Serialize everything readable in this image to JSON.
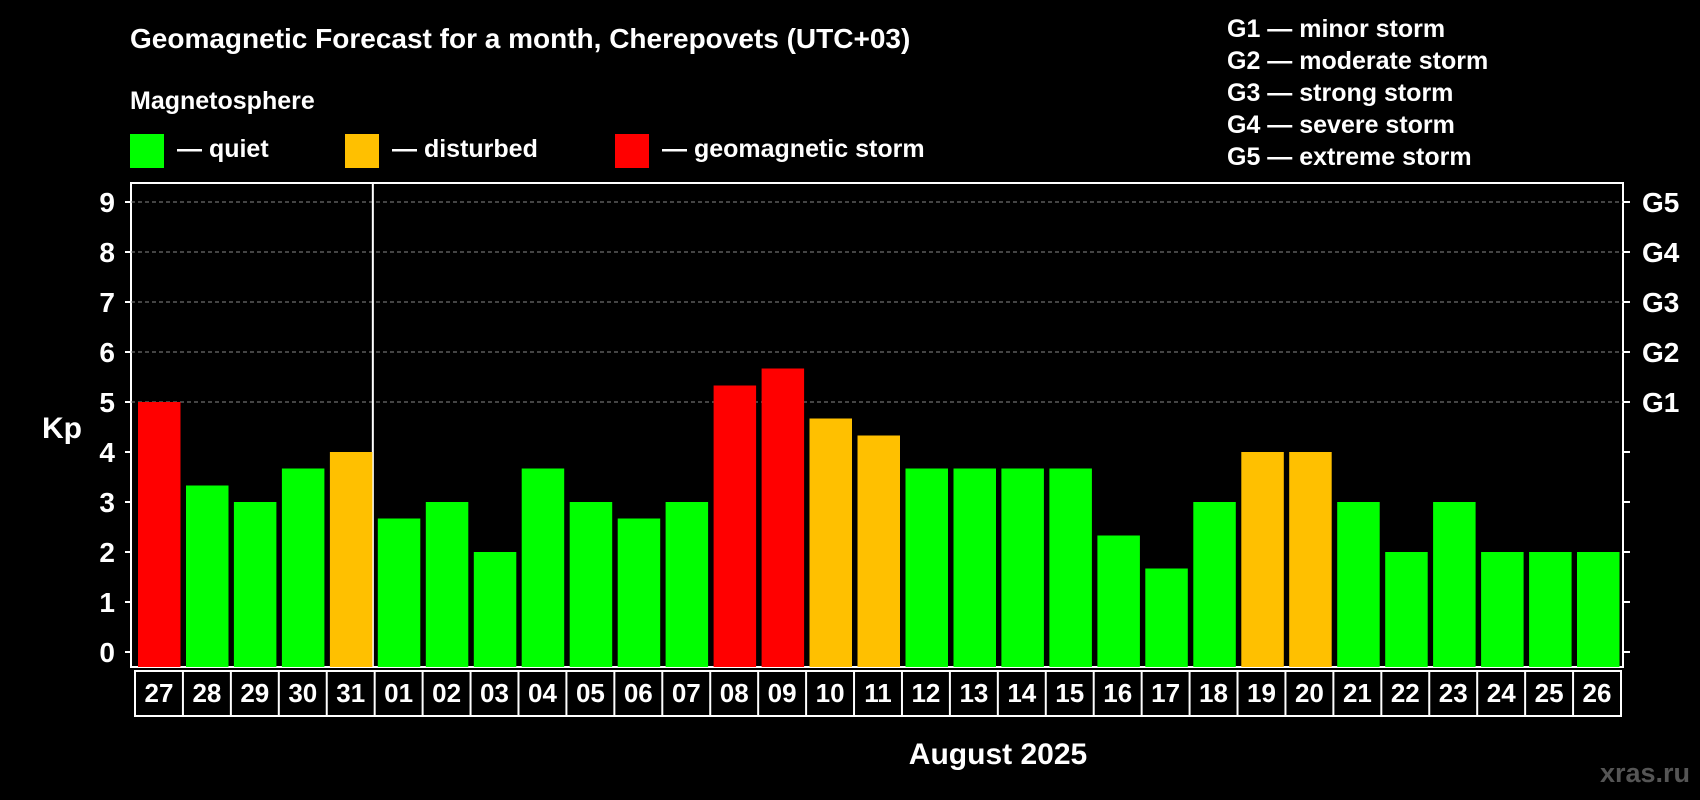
{
  "header": {
    "title": "Geomagnetic Forecast for a month, Cherepovets (UTC+03)",
    "magnetosphere_label": "Magnetosphere",
    "legend": [
      {
        "label": "— quiet",
        "color": "#00ff00"
      },
      {
        "label": "— disturbed",
        "color": "#ffc000"
      },
      {
        "label": "— geomagnetic storm",
        "color": "#ff0000"
      }
    ],
    "storm_scale": [
      "G1 — minor storm",
      "G2 — moderate storm",
      "G3 — strong storm",
      "G4 — severe storm",
      "G5 — extreme storm"
    ]
  },
  "watermark": "xras.ru",
  "colors": {
    "quiet": "#00ff00",
    "disturbed": "#ffc000",
    "storm": "#ff0000",
    "background": "#000000",
    "axis": "#ffffff"
  },
  "chart_data": {
    "type": "bar",
    "title": "Geomagnetic Forecast for a month, Cherepovets (UTC+03)",
    "ylabel": "Kp",
    "xlabel": "August 2025",
    "ylim": [
      0,
      9
    ],
    "yticks": [
      "0",
      "1",
      "2",
      "3",
      "4",
      "5",
      "6",
      "7",
      "8",
      "9"
    ],
    "right_ticks": [
      {
        "kp": 5,
        "label": "G1"
      },
      {
        "kp": 6,
        "label": "G2"
      },
      {
        "kp": 7,
        "label": "G3"
      },
      {
        "kp": 8,
        "label": "G4"
      },
      {
        "kp": 9,
        "label": "G5"
      }
    ],
    "month_divider_after_index": 4,
    "categories": [
      "27",
      "28",
      "29",
      "30",
      "31",
      "01",
      "02",
      "03",
      "04",
      "05",
      "06",
      "07",
      "08",
      "09",
      "10",
      "11",
      "12",
      "13",
      "14",
      "15",
      "16",
      "17",
      "18",
      "19",
      "20",
      "21",
      "22",
      "23",
      "24",
      "25",
      "26"
    ],
    "values": [
      5.0,
      3.33,
      3.0,
      3.67,
      4.0,
      2.67,
      3.0,
      2.0,
      3.67,
      3.0,
      2.67,
      3.0,
      5.33,
      5.67,
      4.67,
      4.33,
      3.67,
      3.67,
      3.67,
      3.67,
      2.33,
      1.67,
      3.0,
      4.0,
      4.0,
      3.0,
      2.0,
      3.0,
      2.0,
      2.0,
      2.0
    ],
    "levels": [
      "storm",
      "quiet",
      "quiet",
      "quiet",
      "disturbed",
      "quiet",
      "quiet",
      "quiet",
      "quiet",
      "quiet",
      "quiet",
      "quiet",
      "storm",
      "storm",
      "disturbed",
      "disturbed",
      "quiet",
      "quiet",
      "quiet",
      "quiet",
      "quiet",
      "quiet",
      "quiet",
      "disturbed",
      "disturbed",
      "quiet",
      "quiet",
      "quiet",
      "quiet",
      "quiet",
      "quiet"
    ]
  }
}
